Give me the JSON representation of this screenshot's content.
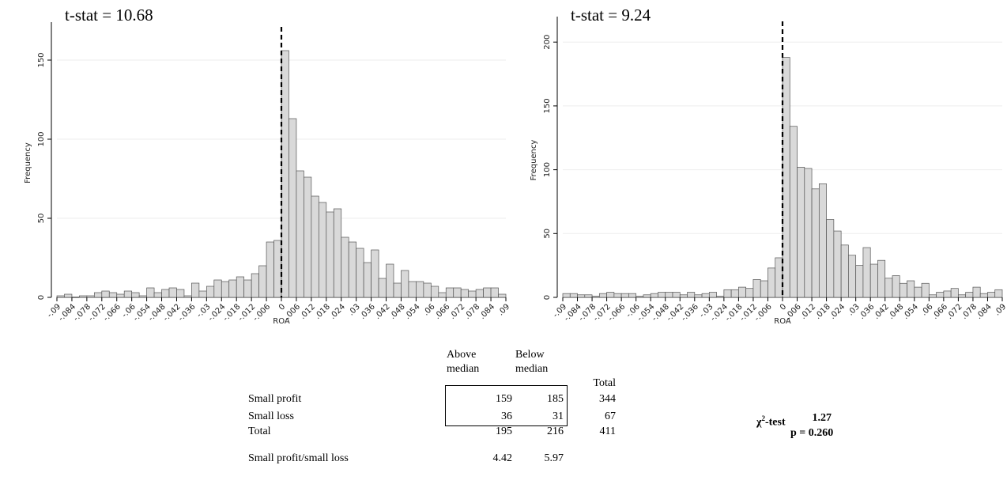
{
  "chart_data": [
    {
      "type": "histogram",
      "annotation": "t-stat = 10.68",
      "xlabel": "ROA",
      "ylabel": "Frequency",
      "bins": [
        -0.09,
        -0.087,
        -0.084,
        -0.081,
        -0.078,
        -0.075,
        -0.072,
        -0.069,
        -0.066,
        -0.063,
        -0.06,
        -0.057,
        -0.054,
        -0.051,
        -0.048,
        -0.045,
        -0.042,
        -0.039,
        -0.036,
        -0.033,
        -0.03,
        -0.027,
        -0.024,
        -0.021,
        -0.018,
        -0.015,
        -0.012,
        -0.009,
        -0.006,
        -0.003,
        0,
        0.003,
        0.006,
        0.009,
        0.012,
        0.015,
        0.018,
        0.021,
        0.024,
        0.027,
        0.03,
        0.033,
        0.036,
        0.039,
        0.042,
        0.045,
        0.048,
        0.051,
        0.054,
        0.057,
        0.06,
        0.063,
        0.066,
        0.069,
        0.072,
        0.075,
        0.078,
        0.081,
        0.084,
        0.087,
        0.09
      ],
      "values": [
        1,
        2,
        0,
        1,
        1,
        3,
        4,
        3,
        2,
        4,
        3,
        1,
        6,
        3,
        5,
        6,
        5,
        1,
        9,
        4,
        7,
        11,
        10,
        11,
        13,
        11,
        15,
        20,
        35,
        36,
        156,
        113,
        80,
        76,
        64,
        60,
        54,
        56,
        38,
        35,
        31,
        22,
        30,
        12,
        21,
        9,
        17,
        10,
        10,
        9,
        7,
        3,
        6,
        6,
        5,
        4,
        5,
        6,
        6,
        2
      ],
      "color": "#d9d9d9",
      "xlim": [
        -0.09,
        0.09
      ],
      "ylim": [
        0,
        170
      ],
      "xticks": [
        {
          "value": -0.09,
          "label": "-.09"
        },
        {
          "value": -0.084,
          "label": "-.084"
        },
        {
          "value": -0.078,
          "label": "-.078"
        },
        {
          "value": -0.072,
          "label": "-.072"
        },
        {
          "value": -0.066,
          "label": "-.066"
        },
        {
          "value": -0.06,
          "label": "-.06"
        },
        {
          "value": -0.054,
          "label": "-.054"
        },
        {
          "value": -0.048,
          "label": "-.048"
        },
        {
          "value": -0.042,
          "label": "-.042"
        },
        {
          "value": -0.036,
          "label": "-.036"
        },
        {
          "value": -0.03,
          "label": "-.03"
        },
        {
          "value": -0.024,
          "label": "-.024"
        },
        {
          "value": -0.018,
          "label": "-.018"
        },
        {
          "value": -0.012,
          "label": "-.012"
        },
        {
          "value": -0.006,
          "label": "-.006"
        },
        0,
        {
          "value": 0.006,
          "label": ".006"
        },
        {
          "value": 0.012,
          "label": ".012"
        },
        {
          "value": 0.018,
          "label": ".018"
        },
        {
          "value": 0.024,
          "label": ".024"
        },
        {
          "value": 0.03,
          "label": ".03"
        },
        {
          "value": 0.036,
          "label": ".036"
        },
        {
          "value": 0.042,
          "label": ".042"
        },
        {
          "value": 0.048,
          "label": ".048"
        },
        {
          "value": 0.054,
          "label": ".054"
        },
        {
          "value": 0.06,
          "label": ".06"
        },
        {
          "value": 0.066,
          "label": ".066"
        },
        {
          "value": 0.072,
          "label": ".072"
        },
        {
          "value": 0.078,
          "label": ".078"
        },
        {
          "value": 0.084,
          "label": ".084"
        },
        {
          "value": 0.09,
          "label": ".09"
        }
      ],
      "yticks": [
        0,
        50,
        100,
        150
      ],
      "grid": true,
      "xline": 0
    },
    {
      "type": "histogram",
      "annotation": "t-stat = 9.24",
      "xlabel": "ROA",
      "ylabel": "Frequency",
      "bins": [
        -0.09,
        -0.087,
        -0.084,
        -0.081,
        -0.078,
        -0.075,
        -0.072,
        -0.069,
        -0.066,
        -0.063,
        -0.06,
        -0.057,
        -0.054,
        -0.051,
        -0.048,
        -0.045,
        -0.042,
        -0.039,
        -0.036,
        -0.033,
        -0.03,
        -0.027,
        -0.024,
        -0.021,
        -0.018,
        -0.015,
        -0.012,
        -0.009,
        -0.006,
        -0.003,
        0,
        0.003,
        0.006,
        0.009,
        0.012,
        0.015,
        0.018,
        0.021,
        0.024,
        0.027,
        0.03,
        0.033,
        0.036,
        0.039,
        0.042,
        0.045,
        0.048,
        0.051,
        0.054,
        0.057,
        0.06,
        0.063,
        0.066,
        0.069,
        0.072,
        0.075,
        0.078,
        0.081,
        0.084,
        0.087,
        0.09
      ],
      "values": [
        3,
        3,
        2,
        2,
        1,
        3,
        4,
        3,
        3,
        3,
        1,
        2,
        3,
        4,
        4,
        4,
        2,
        4,
        2,
        3,
        4,
        1,
        6,
        6,
        8,
        7,
        14,
        13,
        23,
        31,
        188,
        134,
        102,
        101,
        85,
        89,
        61,
        52,
        41,
        33,
        25,
        39,
        26,
        29,
        15,
        17,
        11,
        13,
        8,
        11,
        2,
        4,
        5,
        7,
        2,
        4,
        8,
        3,
        4,
        6
      ],
      "color": "#d9d9d9",
      "xlim": [
        -0.09,
        0.09
      ],
      "ylim": [
        0,
        215
      ],
      "xticks": [
        {
          "value": -0.09,
          "label": "-.09"
        },
        {
          "value": -0.084,
          "label": "-.084"
        },
        {
          "value": -0.078,
          "label": "-.078"
        },
        {
          "value": -0.072,
          "label": "-.072"
        },
        {
          "value": -0.066,
          "label": "-.066"
        },
        {
          "value": -0.06,
          "label": "-.06"
        },
        {
          "value": -0.054,
          "label": "-.054"
        },
        {
          "value": -0.048,
          "label": "-.048"
        },
        {
          "value": -0.042,
          "label": "-.042"
        },
        {
          "value": -0.036,
          "label": "-.036"
        },
        {
          "value": -0.03,
          "label": "-.03"
        },
        {
          "value": -0.024,
          "label": "-.024"
        },
        {
          "value": -0.018,
          "label": "-.018"
        },
        {
          "value": -0.012,
          "label": "-.012"
        },
        {
          "value": -0.006,
          "label": "-.006"
        },
        0,
        {
          "value": 0.006,
          "label": ".006"
        },
        {
          "value": 0.012,
          "label": ".012"
        },
        {
          "value": 0.018,
          "label": ".018"
        },
        {
          "value": 0.024,
          "label": ".024"
        },
        {
          "value": 0.03,
          "label": ".03"
        },
        {
          "value": 0.036,
          "label": ".036"
        },
        {
          "value": 0.042,
          "label": ".042"
        },
        {
          "value": 0.048,
          "label": ".048"
        },
        {
          "value": 0.054,
          "label": ".054"
        },
        {
          "value": 0.06,
          "label": ".06"
        },
        {
          "value": 0.066,
          "label": ".066"
        },
        {
          "value": 0.072,
          "label": ".072"
        },
        {
          "value": 0.078,
          "label": ".078"
        },
        {
          "value": 0.084,
          "label": ".084"
        },
        {
          "value": 0.09,
          "label": ".09"
        }
      ],
      "yticks": [
        0,
        50,
        100,
        150,
        200
      ],
      "grid": true,
      "xline": 0
    }
  ],
  "table": {
    "columns": [
      "Above median",
      "Below median",
      "Total"
    ],
    "rows": [
      {
        "label": "Small profit",
        "values": [
          159,
          185,
          344
        ]
      },
      {
        "label": "Small loss",
        "values": [
          36,
          31,
          67
        ]
      },
      {
        "label": "Total",
        "values": [
          195,
          216,
          411
        ]
      },
      {
        "label": "Small profit/small loss",
        "values": [
          4.42,
          5.97
        ]
      }
    ],
    "chi_square": {
      "symbol": "χ",
      "sup": "2",
      "suffix": "-test",
      "value": 1.27,
      "p": "p = 0.260"
    }
  }
}
